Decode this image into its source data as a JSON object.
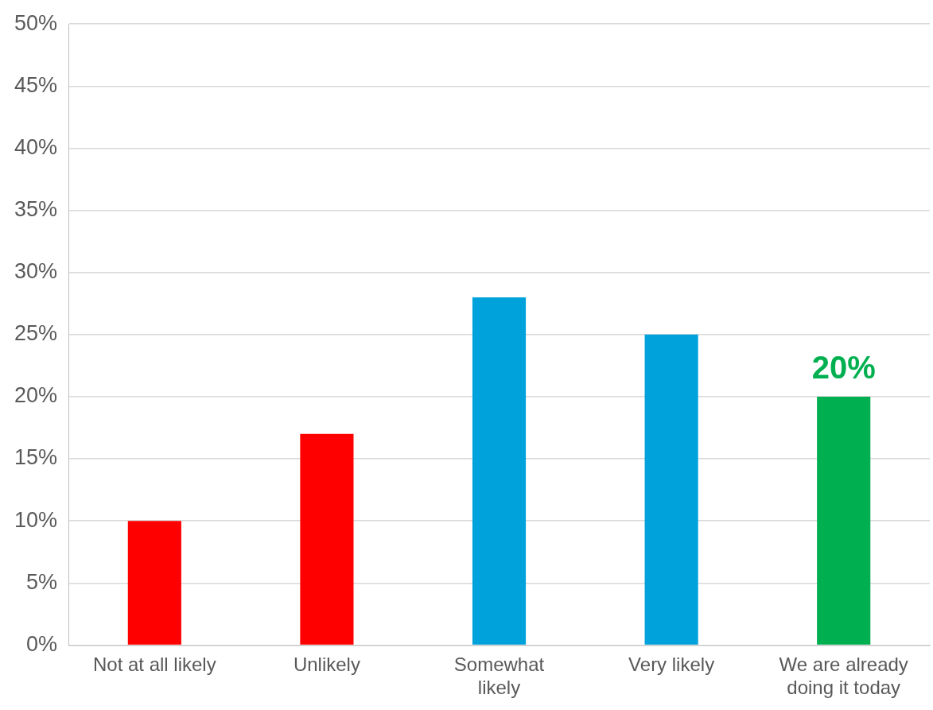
{
  "chart_data": {
    "type": "bar",
    "categories": [
      "Not at all likely",
      "Unlikely",
      "Somewhat likely",
      "Very likely",
      "We are already doing it today"
    ],
    "values": [
      10,
      17,
      28,
      25,
      20
    ],
    "colors": [
      "#ff0000",
      "#ff0000",
      "#00a2db",
      "#00a2db",
      "#00b050"
    ],
    "value_labels": [
      null,
      null,
      null,
      null,
      "20%"
    ],
    "ylim": [
      0,
      50
    ],
    "yticks": [
      {
        "value": 0,
        "label": "0%"
      },
      {
        "value": 5,
        "label": "5%"
      },
      {
        "value": 10,
        "label": "10%"
      },
      {
        "value": 15,
        "label": "15%"
      },
      {
        "value": 20,
        "label": "20%"
      },
      {
        "value": 25,
        "label": "25%"
      },
      {
        "value": 30,
        "label": "30%"
      },
      {
        "value": 35,
        "label": "35%"
      },
      {
        "value": 40,
        "label": "40%"
      },
      {
        "value": 45,
        "label": "45%"
      },
      {
        "value": 50,
        "label": "50%"
      }
    ],
    "grid": "y",
    "legend": false
  }
}
